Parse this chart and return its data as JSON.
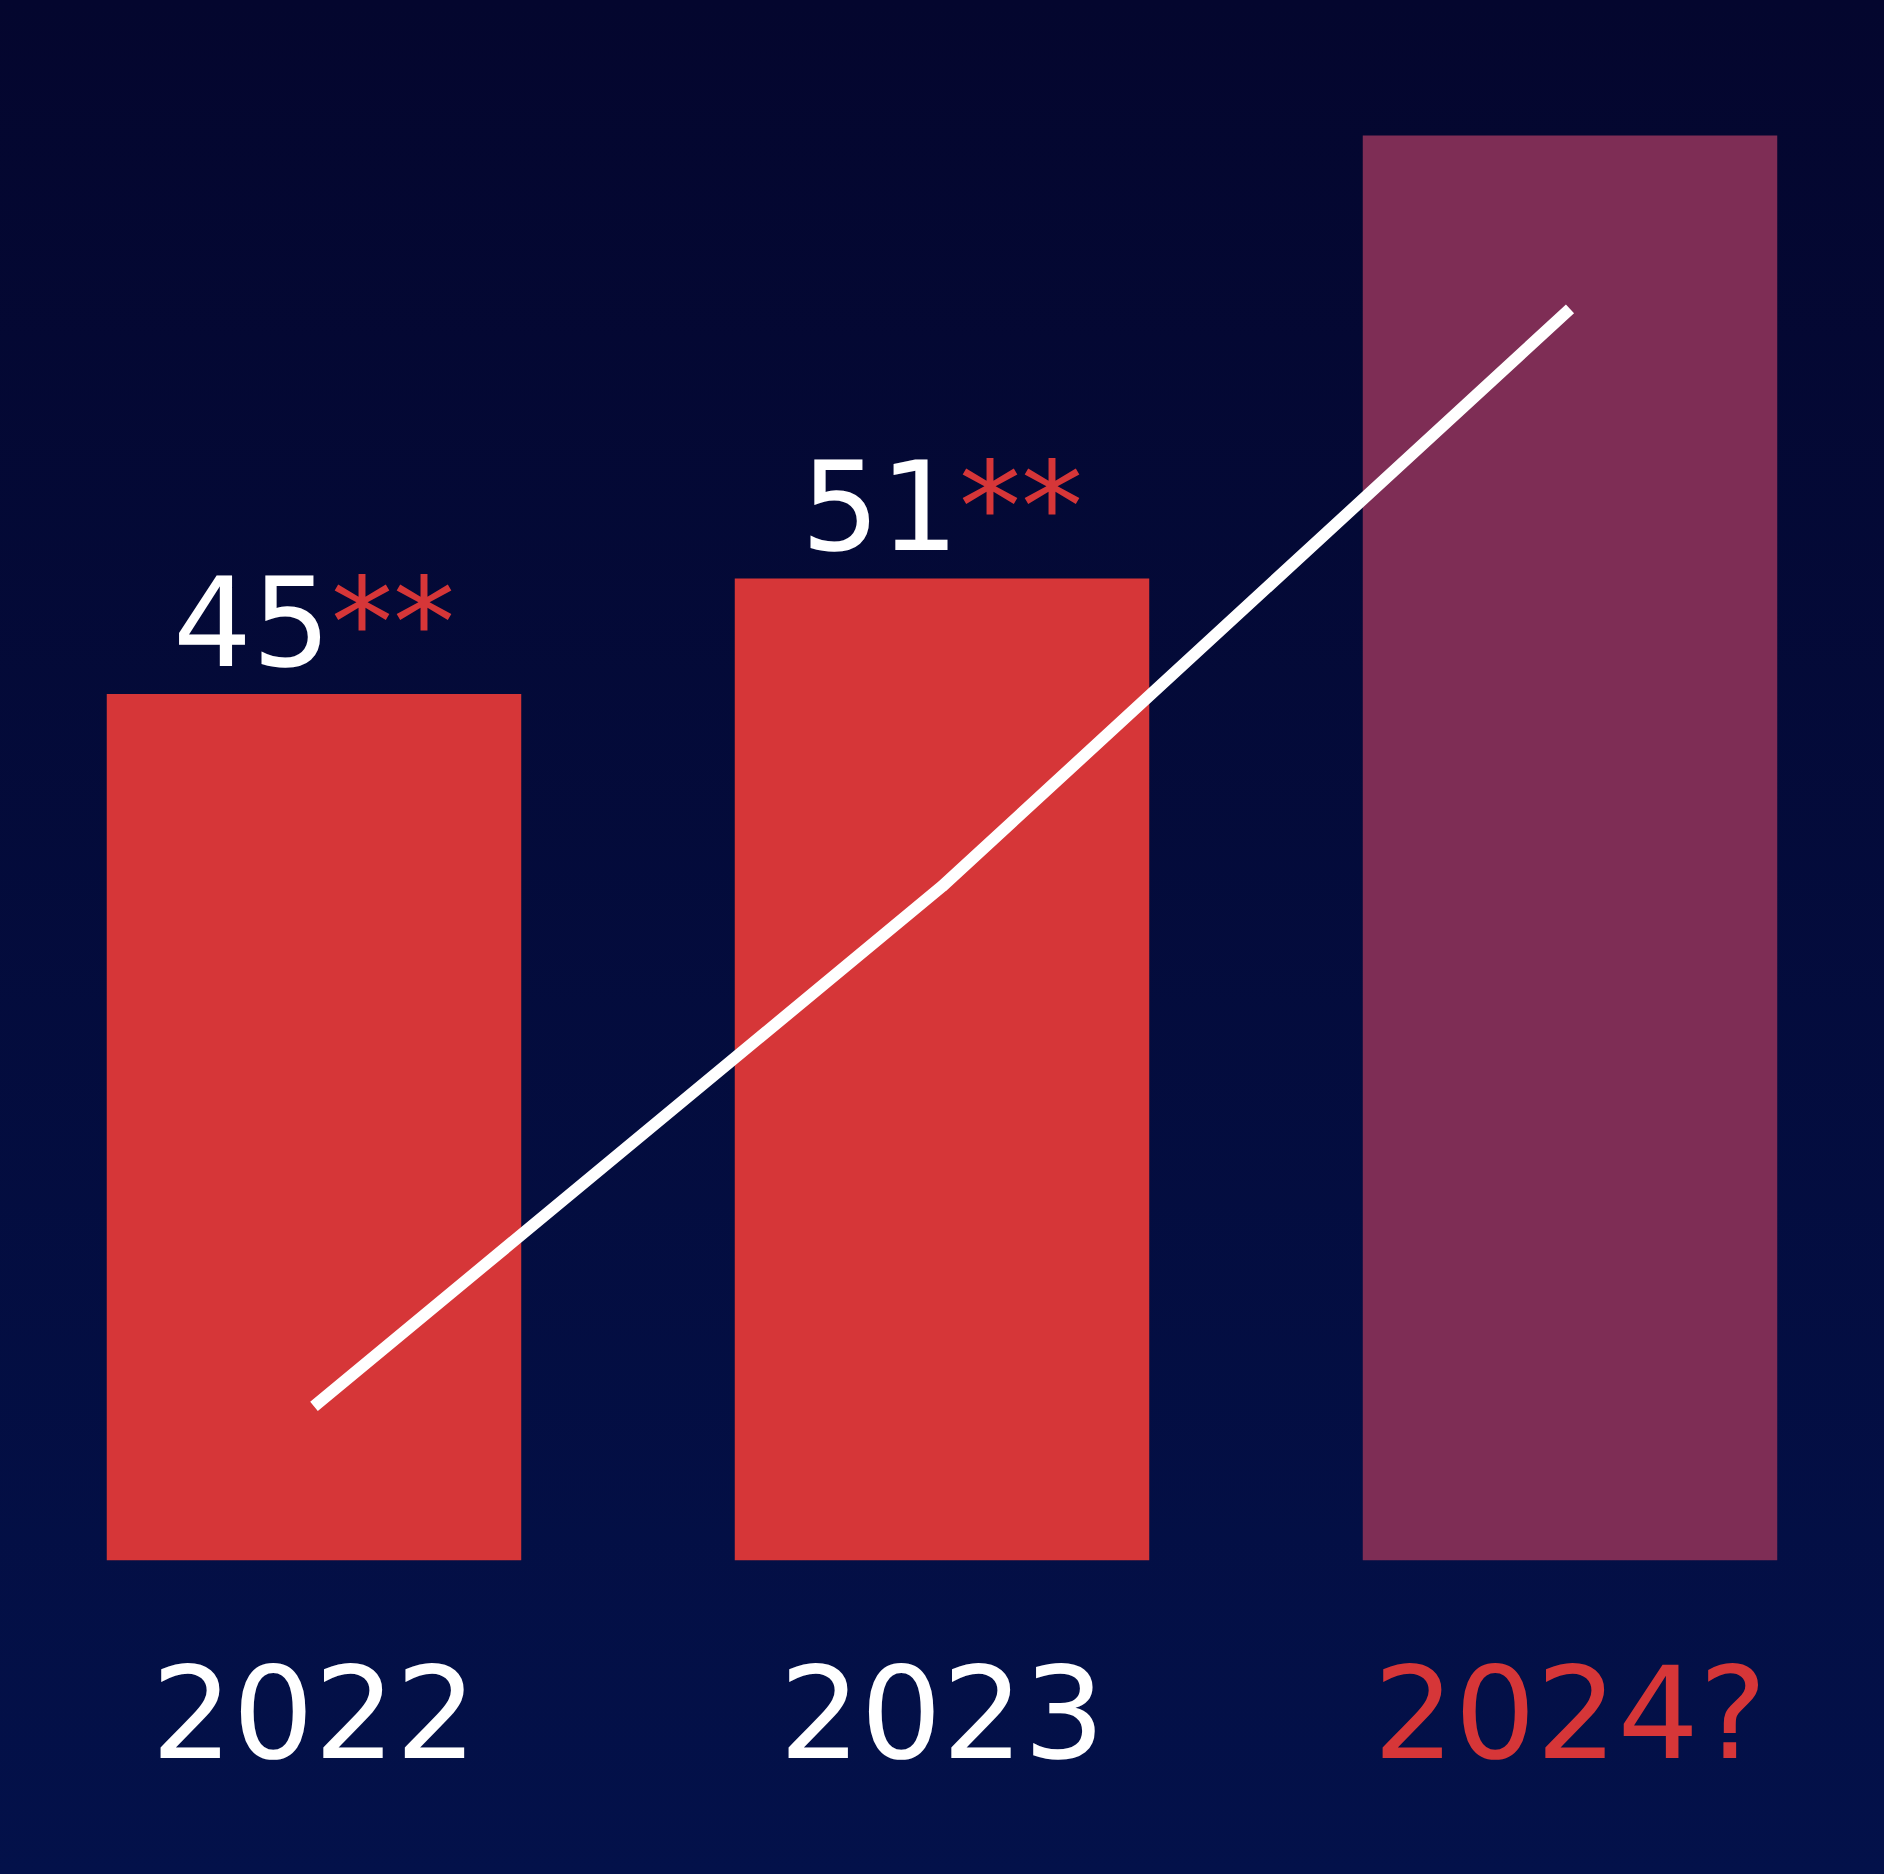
{
  "chart_data": {
    "type": "bar",
    "categories": [
      "2022",
      "2023",
      "2024?"
    ],
    "series": [
      {
        "colors": [
          "#d63638",
          "#d63638",
          "#7e2d55"
        ],
        "values": [
          45,
          51,
          74
        ],
        "value_labels": [
          "45**",
          "51**",
          null
        ]
      },
      {
        "type": "line",
        "color": "#ffffff",
        "values": [
          8,
          35,
          65
        ]
      }
    ],
    "tick_labels": "x",
    "grid": false,
    "legend": false,
    "marker": "none"
  }
}
